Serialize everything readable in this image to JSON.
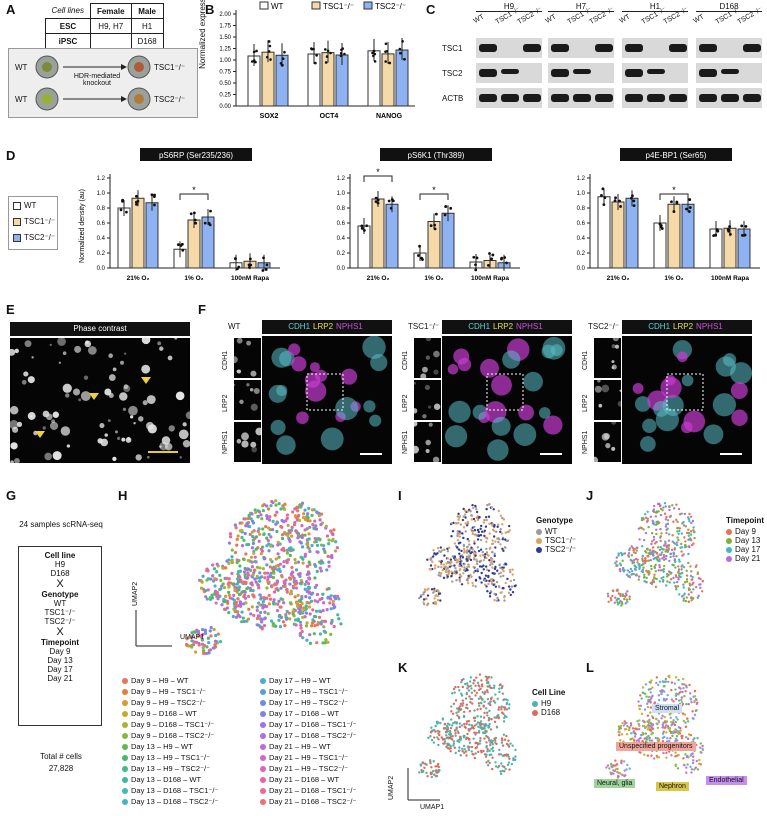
{
  "panels": {
    "A": {
      "label": "A",
      "table": {
        "header": [
          "Cell lines",
          "Female",
          "Male"
        ],
        "rows": [
          [
            "ESC",
            "H9, H7",
            "H1"
          ],
          [
            "iPSC",
            "",
            "D168"
          ]
        ]
      },
      "wt": "WT",
      "process": "HDR-mediated knockout",
      "tsc1": "TSC1⁻/⁻",
      "tsc2": "TSC2⁻/⁻"
    },
    "B": {
      "label": "B",
      "ylabel": "Normalized expression (au)",
      "legend": [
        "WT",
        "TSC1⁻/⁻",
        "TSC2⁻/⁻"
      ],
      "ticks": [
        "0.00",
        "0.25",
        "0.50",
        "0.75",
        "1.00",
        "1.25",
        "1.50",
        "1.75",
        "2.00"
      ],
      "genes": [
        "SOX2",
        "OCT4",
        "NANOG"
      ]
    },
    "C": {
      "label": "C",
      "lines": [
        "H9",
        "H7",
        "H1",
        "D168"
      ],
      "lanes": [
        "WT",
        "TSC1⁻/⁻",
        "TSC2⁻/⁻"
      ],
      "proteins": [
        "TSC1",
        "TSC2",
        "ACTB"
      ]
    },
    "D": {
      "label": "D",
      "legend": [
        "WT",
        "TSC1⁻/⁻",
        "TSC2⁻/⁻"
      ],
      "ylabel": "Normalized density (au)",
      "ticks": [
        "0.0",
        "0.2",
        "0.4",
        "0.6",
        "0.8",
        "1.0",
        "1.2"
      ],
      "conditions": [
        "21% O₂",
        "1% O₂",
        "100nM Rapa"
      ],
      "titles": [
        "pS6RP (Ser235/236)",
        "pS6K1 (Thr389)",
        "p4E-BP1 (Ser65)"
      ],
      "star": "*"
    },
    "E": {
      "label": "E",
      "title": "Phase contrast"
    },
    "F": {
      "label": "F",
      "genotypes": [
        "WT",
        "TSC1⁻/⁻",
        "TSC2⁻/⁻"
      ],
      "markers": [
        "CDH1",
        "LRP2",
        "NPHS1"
      ],
      "merge": [
        "CDH1",
        "LRP2",
        "NPHS1"
      ]
    },
    "G": {
      "label": "G",
      "header": "24 samples scRNA-seq",
      "cell_line_title": "Cell line",
      "cell_lines": [
        "H9",
        "D168"
      ],
      "x": "X",
      "genotype_title": "Genotype",
      "genotypes": [
        "WT",
        "TSC1⁻/⁻",
        "TSC2⁻/⁻"
      ],
      "timepoint_title": "Timepoint",
      "timepoints": [
        "Day 9",
        "Day 13",
        "Day 17",
        "Day 21"
      ],
      "total_label": "Total # cells",
      "total": "27,828"
    },
    "H": {
      "label": "H",
      "umap1": "UMAP1",
      "umap2": "UMAP2",
      "legend_left": [
        "Day 9 – H9 – WT",
        "Day 9 – H9 – TSC1⁻/⁻",
        "Day 9 – H9 – TSC2⁻/⁻",
        "Day 9 – D168 – WT",
        "Day 9 – D168 – TSC1⁻/⁻",
        "Day 9 – D168 – TSC2⁻/⁻",
        "Day 13 – H9 – WT",
        "Day 13 – H9 – TSC1⁻/⁻",
        "Day 13 – H9 – TSC2⁻/⁻",
        "Day 13 – D168 – WT",
        "Day 13 – D168 – TSC1⁻/⁻",
        "Day 13 – D168 – TSC2⁻/⁻"
      ],
      "legend_right": [
        "Day 17 – H9 – WT",
        "Day 17 – H9 – TSC1⁻/⁻",
        "Day 17 – H9 – TSC2⁻/⁻",
        "Day 17 – D168 – WT",
        "Day 17 – D168 – TSC1⁻/⁻",
        "Day 17 – D168 – TSC2⁻/⁻",
        "Day 21 – H9 – WT",
        "Day 21 – H9 – TSC1⁻/⁻",
        "Day 21 – H9 – TSC2⁻/⁻",
        "Day 21 – D168 – WT",
        "Day 21 – D168 – TSC1⁻/⁻",
        "Day 21 – D168 – TSC2⁻/⁻"
      ],
      "colors_left": [
        "#e8735a",
        "#e07f3a",
        "#d99a2b",
        "#c8a92a",
        "#a9b23a",
        "#86b73f",
        "#5fba4f",
        "#44bb6a",
        "#3fbb87",
        "#3dbaa0",
        "#40b8b6",
        "#46b3c8"
      ],
      "colors_right": [
        "#4aa9d6",
        "#5a9be0",
        "#6e8ce6",
        "#8580e8",
        "#9b76e6",
        "#b06ee0",
        "#c468d6",
        "#d565c8",
        "#e163b6",
        "#e965a2",
        "#ec6a8c",
        "#ea7074"
      ]
    },
    "I": {
      "label": "I",
      "title": "Genotype",
      "items": [
        "WT",
        "TSC1⁻/⁻",
        "TSC2⁻/⁻"
      ],
      "colors": [
        "#9a9aa0",
        "#e0a060",
        "#2b3c9a"
      ]
    },
    "J": {
      "label": "J",
      "title": "Timepoint",
      "items": [
        "Day 9",
        "Day 13",
        "Day 17",
        "Day 21"
      ],
      "colors": [
        "#e8735a",
        "#7ab33a",
        "#3fb8c0",
        "#b56fe0"
      ]
    },
    "K": {
      "label": "K",
      "title": "Cell Line",
      "items": [
        "H9",
        "D168"
      ],
      "colors": [
        "#4fb3a8",
        "#e06a5a"
      ],
      "umap1": "UMAP1",
      "umap2": "UMAP2"
    },
    "L": {
      "label": "L",
      "clusters": [
        "Stromal",
        "Unspecified progenitors",
        "Neural, glia",
        "Nephron",
        "Endothelial"
      ]
    }
  }
}
